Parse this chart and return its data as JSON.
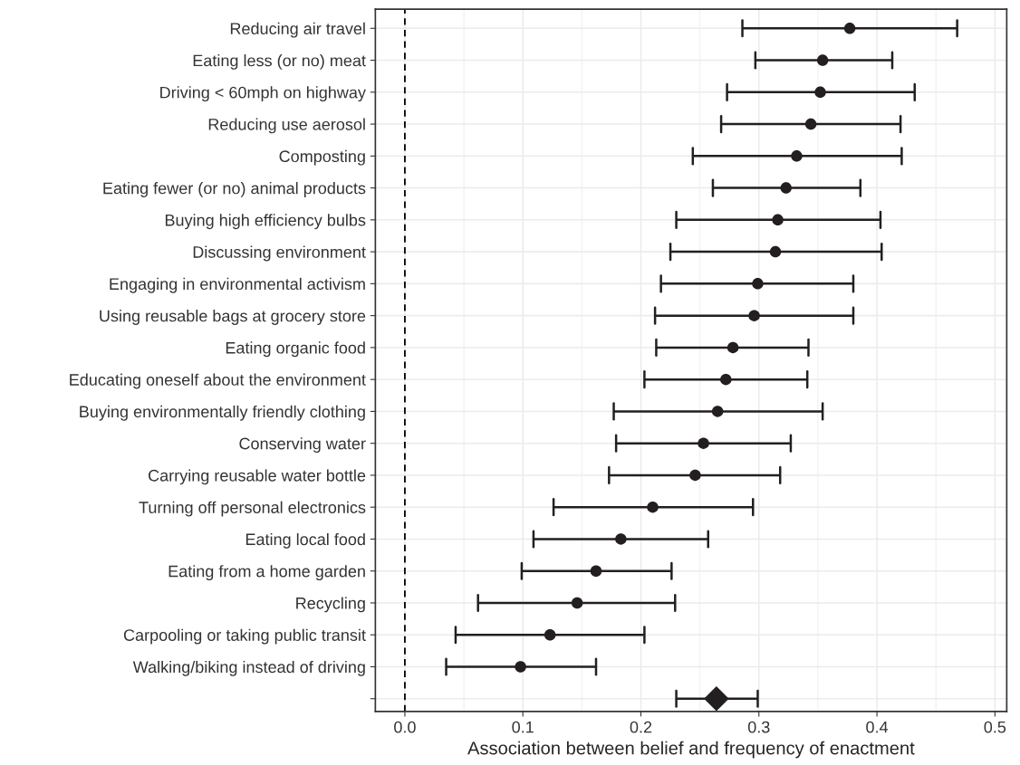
{
  "chart_data": {
    "type": "scatter",
    "orientation": "horizontal",
    "xlabel": "Association between belief and frequency of enactment",
    "categories": [
      "Reducing air travel",
      "Eating less (or no) meat",
      "Driving < 60mph on highway",
      "Reducing use aerosol",
      "Composting",
      "Eating fewer (or no) animal products",
      "Buying high efficiency bulbs",
      "Discussing environment",
      "Engaging in environmental activism",
      "Using reusable bags at grocery store",
      "Eating organic food",
      "Educating oneself about the environment",
      "Buying environmentally friendly clothing",
      "Conserving water",
      "Carrying reusable water bottle",
      "Turning off personal electronics",
      "Eating local food",
      "Eating from a home garden",
      "Recycling",
      "Carpooling or taking public transit",
      "Walking/biking instead of driving",
      null
    ],
    "series": [
      {
        "color": "#231f20",
        "marker": "circle",
        "values": [
          0.377,
          0.354,
          0.352,
          0.344,
          0.332,
          0.323,
          0.316,
          0.314,
          0.299,
          0.296,
          0.278,
          0.272,
          0.265,
          0.253,
          0.246,
          0.21,
          0.183,
          0.162,
          0.146,
          0.123,
          0.098,
          null
        ],
        "errors": [
          [
            0.286,
            0.468
          ],
          [
            0.297,
            0.413
          ],
          [
            0.273,
            0.432
          ],
          [
            0.268,
            0.42
          ],
          [
            0.244,
            0.421
          ],
          [
            0.261,
            0.386
          ],
          [
            0.23,
            0.403
          ],
          [
            0.225,
            0.404
          ],
          [
            0.217,
            0.38
          ],
          [
            0.212,
            0.38
          ],
          [
            0.213,
            0.342
          ],
          [
            0.203,
            0.341
          ],
          [
            0.177,
            0.354
          ],
          [
            0.179,
            0.327
          ],
          [
            0.173,
            0.318
          ],
          [
            0.126,
            0.295
          ],
          [
            0.109,
            0.257
          ],
          [
            0.099,
            0.226
          ],
          [
            0.062,
            0.229
          ],
          [
            0.043,
            0.203
          ],
          [
            0.035,
            0.162
          ],
          null
        ]
      },
      {
        "color": "#231f20",
        "marker": "diamond",
        "values": [
          null,
          null,
          null,
          null,
          null,
          null,
          null,
          null,
          null,
          null,
          null,
          null,
          null,
          null,
          null,
          null,
          null,
          null,
          null,
          null,
          null,
          0.264
        ],
        "errors": [
          null,
          null,
          null,
          null,
          null,
          null,
          null,
          null,
          null,
          null,
          null,
          null,
          null,
          null,
          null,
          null,
          null,
          null,
          null,
          null,
          null,
          [
            0.23,
            0.299
          ]
        ]
      }
    ],
    "xlim": [
      -0.025,
      0.51
    ],
    "xticks": [
      {
        "value": 0,
        "label": "0.0"
      },
      {
        "value": 0.05,
        "label": null
      },
      0.1,
      {
        "value": 0.15,
        "label": null
      },
      0.2,
      {
        "value": 0.25,
        "label": null
      },
      0.3,
      {
        "value": 0.35,
        "label": null
      },
      0.4,
      {
        "value": 0.45,
        "label": null
      },
      0.5
    ],
    "ref_lines": [
      {
        "axis": "x",
        "value": 0,
        "color": "#000000",
        "line_style": "dashed"
      }
    ],
    "grid": true,
    "legend": false
  }
}
